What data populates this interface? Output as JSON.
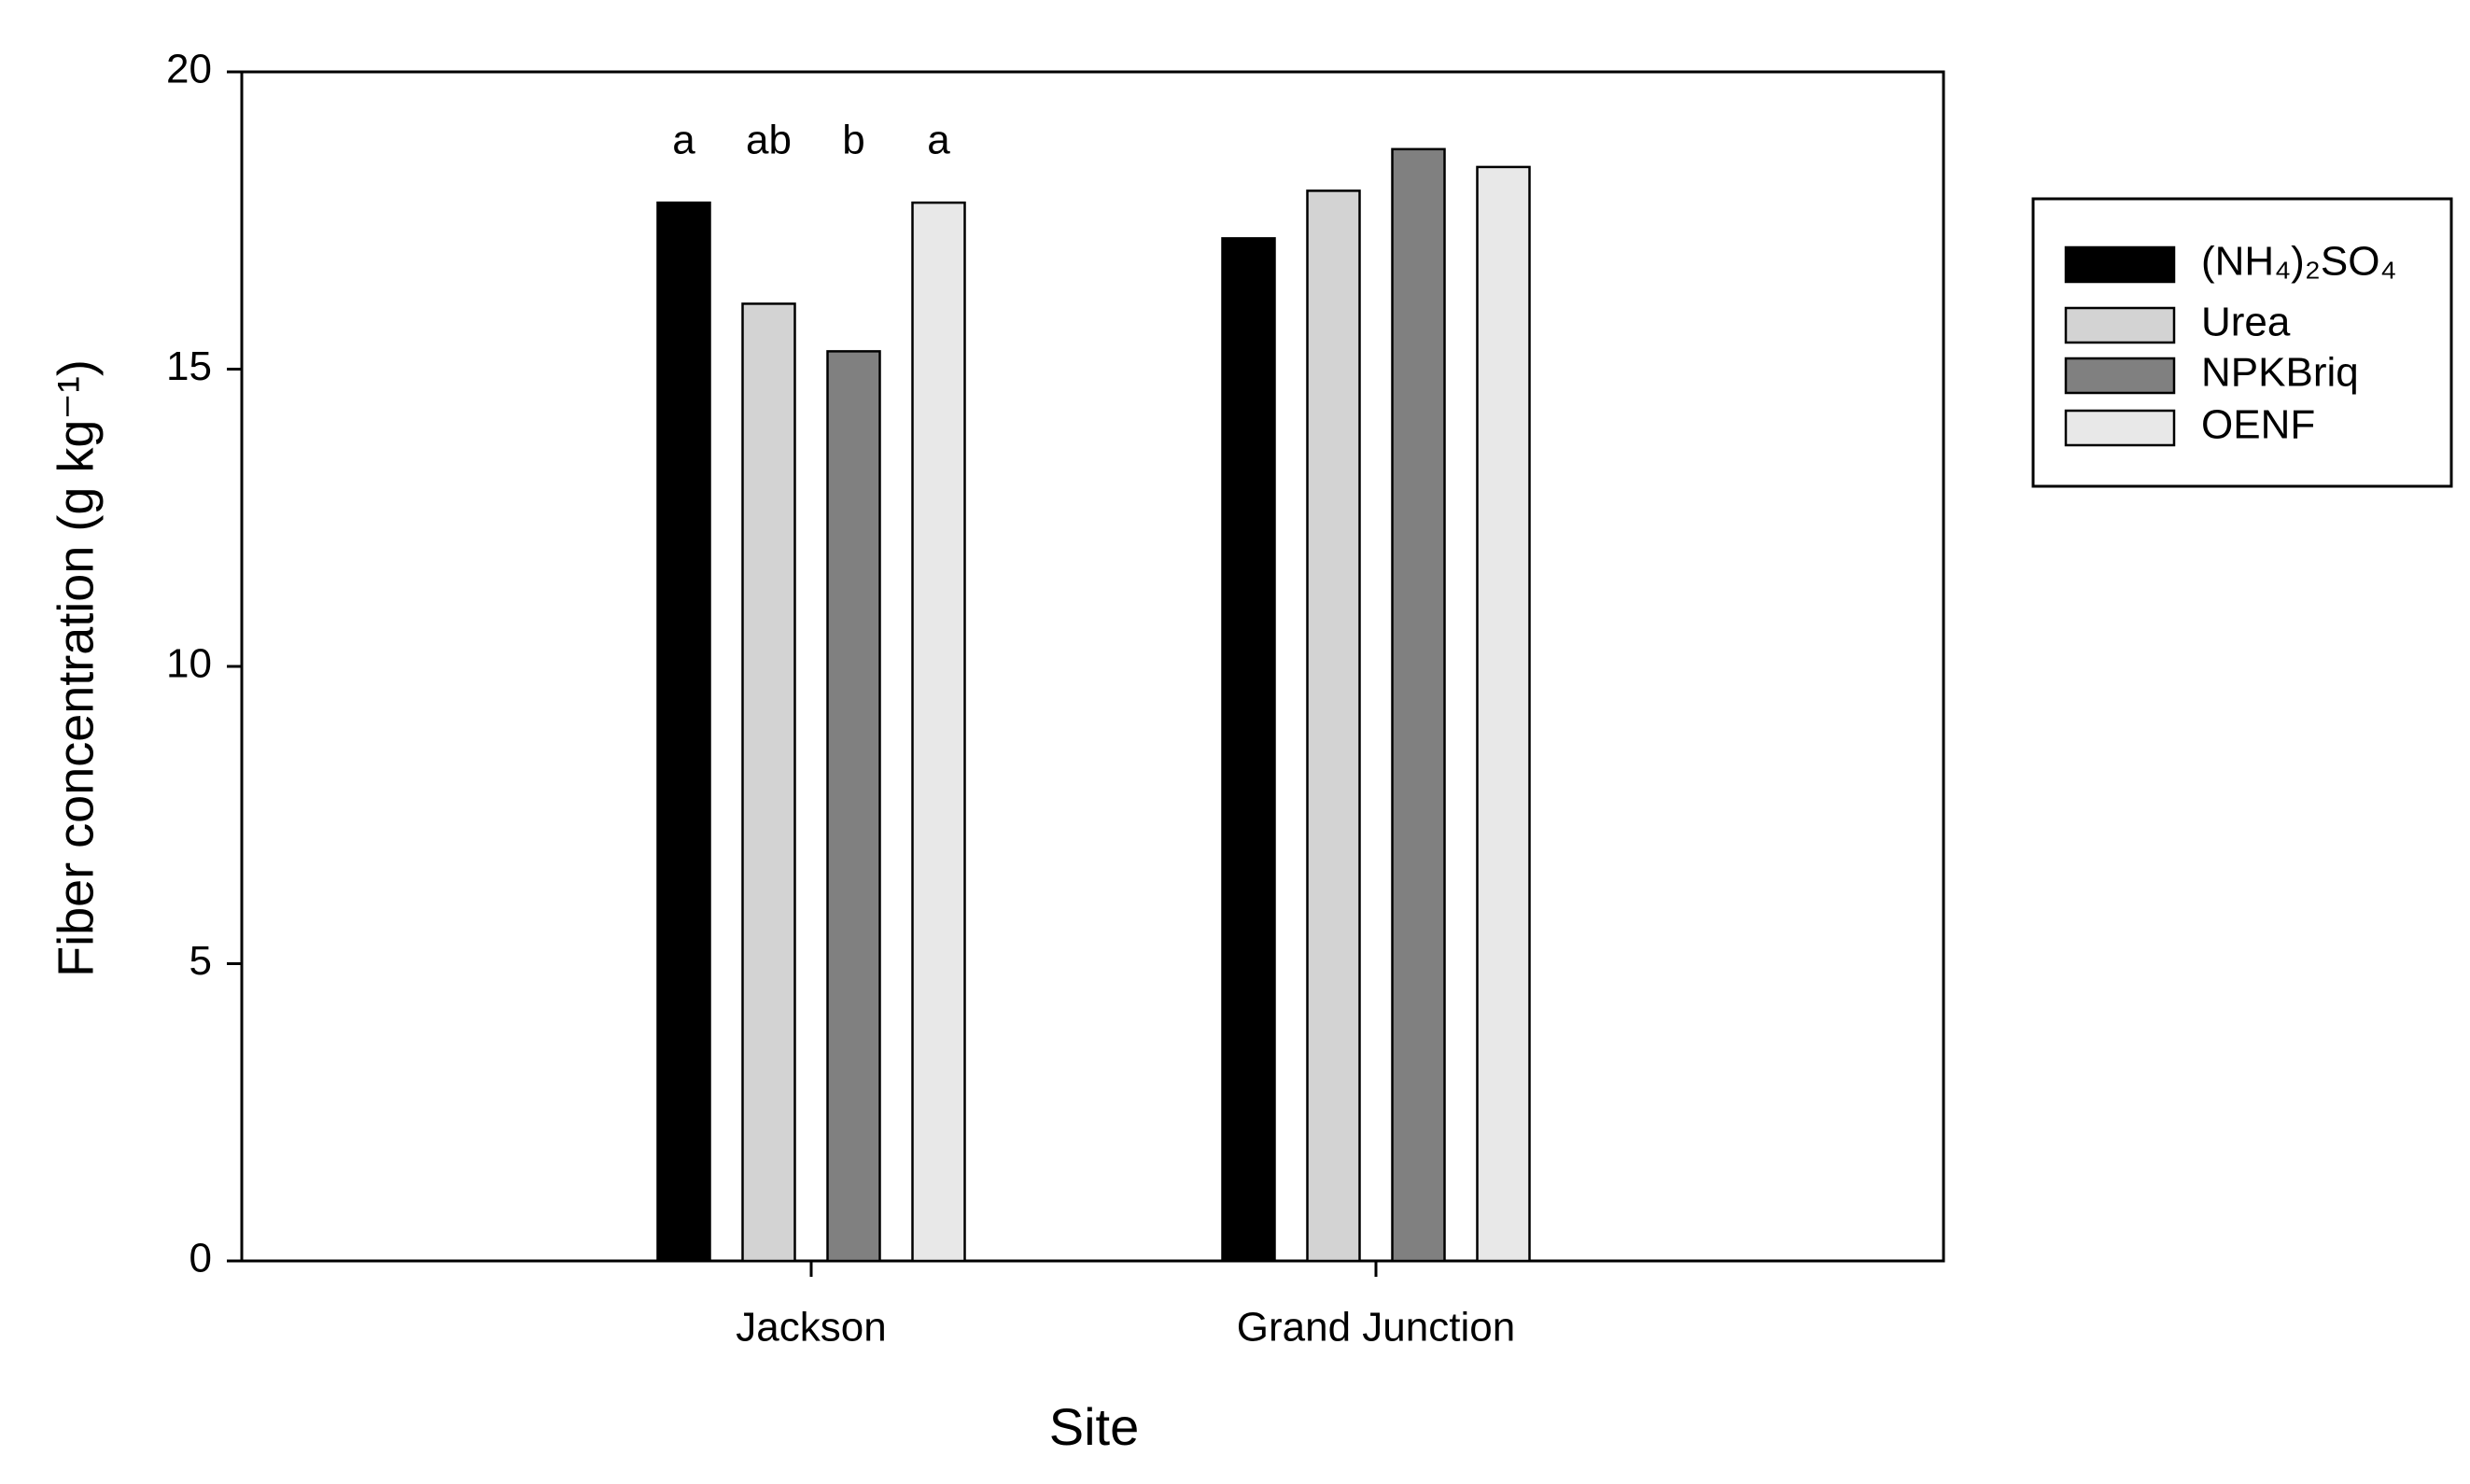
{
  "chart_data": {
    "type": "bar",
    "xlabel": "Site",
    "ylabel": "Fiber concentration (g kg⁻¹)",
    "categories": [
      "Jackson",
      "Grand Junction"
    ],
    "series": [
      {
        "name": "(NH₄)₂SO₄",
        "color": "#000000",
        "values": [
          17.8,
          17.2
        ]
      },
      {
        "name": "Urea",
        "color": "#d3d3d3",
        "values": [
          16.1,
          18.0
        ]
      },
      {
        "name": "NPKBriq",
        "color": "#808080",
        "values": [
          15.3,
          18.7
        ]
      },
      {
        "name": "OENF",
        "color": "#e8e8e8",
        "values": [
          17.8,
          18.4
        ]
      }
    ],
    "annotations": [
      "a",
      "ab",
      "b",
      "a"
    ],
    "ylim": [
      0,
      20
    ],
    "yticks": [
      0,
      5,
      10,
      15,
      20
    ],
    "grid": false,
    "legend": "right"
  }
}
